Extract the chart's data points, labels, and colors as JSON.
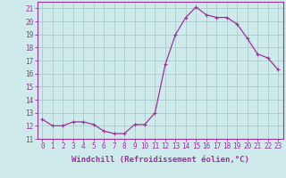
{
  "x": [
    0,
    1,
    2,
    3,
    4,
    5,
    6,
    7,
    8,
    9,
    10,
    11,
    12,
    13,
    14,
    15,
    16,
    17,
    18,
    19,
    20,
    21,
    22,
    23
  ],
  "y": [
    12.5,
    12.0,
    12.0,
    12.3,
    12.3,
    12.1,
    11.6,
    11.4,
    11.4,
    12.1,
    12.1,
    13.0,
    16.7,
    19.0,
    20.3,
    21.1,
    20.5,
    20.3,
    20.3,
    19.8,
    18.7,
    17.5,
    17.2,
    16.3
  ],
  "line_color": "#993399",
  "marker": "s",
  "marker_size": 2,
  "bg_color": "#ceeaea",
  "grid_color": "#aacccc",
  "ylabel_ticks": [
    11,
    12,
    13,
    14,
    15,
    16,
    17,
    18,
    19,
    20,
    21
  ],
  "xlabel": "Windchill (Refroidissement éolien,°C)",
  "xlim": [
    -0.5,
    23.5
  ],
  "ylim": [
    11.0,
    21.5
  ],
  "tick_fontsize": 5.5,
  "xlabel_fontsize": 6.5,
  "spine_color": "#993399",
  "tick_color": "#993399"
}
